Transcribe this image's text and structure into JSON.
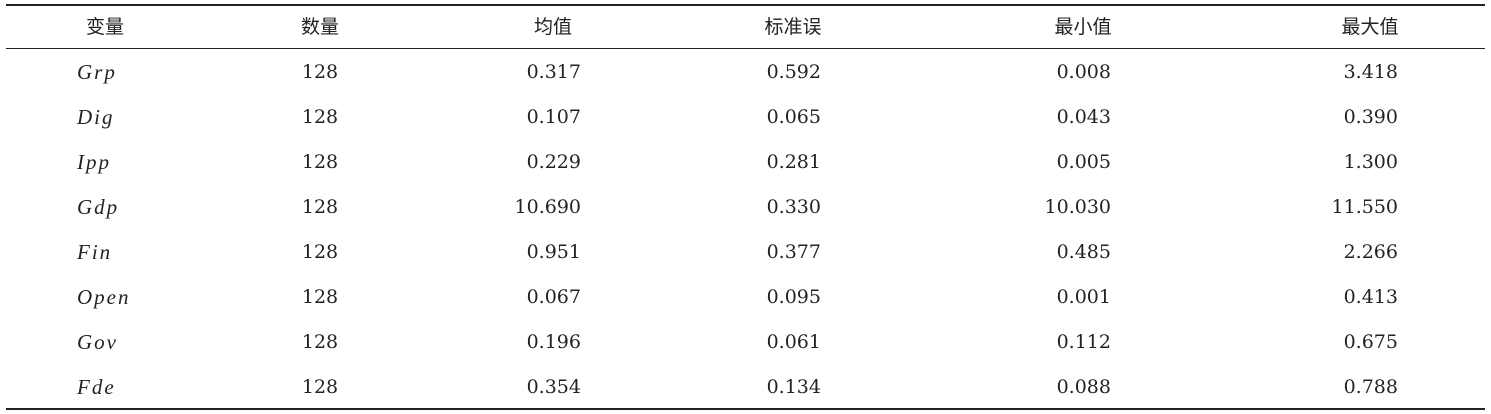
{
  "table": {
    "headers": [
      "变量",
      "数量",
      "均值",
      "标准误",
      "最小值",
      "最大值"
    ],
    "rows": [
      [
        "Grp",
        "128",
        "0.317",
        "0.592",
        "0.008",
        "3.418"
      ],
      [
        "Dig",
        "128",
        "0.107",
        "0.065",
        "0.043",
        "0.390"
      ],
      [
        "Ipp",
        "128",
        "0.229",
        "0.281",
        "0.005",
        "1.300"
      ],
      [
        "Gdp",
        "128",
        "10.690",
        "0.330",
        "10.030",
        "11.550"
      ],
      [
        "Fin",
        "128",
        "0.951",
        "0.377",
        "0.485",
        "2.266"
      ],
      [
        "Open",
        "128",
        "0.067",
        "0.095",
        "0.001",
        "0.413"
      ],
      [
        "Gov",
        "128",
        "0.196",
        "0.061",
        "0.112",
        "0.675"
      ],
      [
        "Fde",
        "128",
        "0.354",
        "0.134",
        "0.088",
        "0.788"
      ]
    ]
  }
}
